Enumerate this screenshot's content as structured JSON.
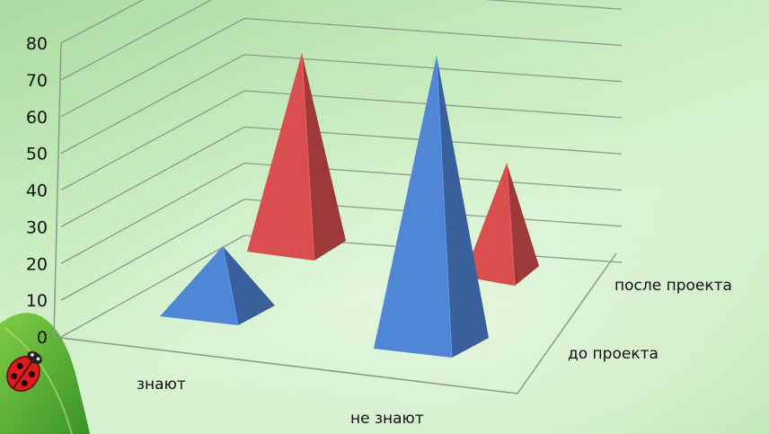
{
  "chart_data": {
    "type": "bar",
    "style": "3d-pyramid",
    "categories": [
      "знают",
      "не знают"
    ],
    "series": [
      {
        "name": "до проекта",
        "values": [
          20,
          80
        ],
        "color": "#4f86d6"
      },
      {
        "name": "после проекта",
        "values": [
          60,
          35
        ],
        "color": "#d94f4f"
      }
    ],
    "ylim": [
      0,
      80
    ],
    "yticks": [
      "0",
      "10",
      "20",
      "30",
      "40",
      "50",
      "60",
      "70",
      "80"
    ],
    "grid": true,
    "decorations": {
      "leaf": "green-leaf",
      "bug": "ladybug-icon"
    }
  }
}
